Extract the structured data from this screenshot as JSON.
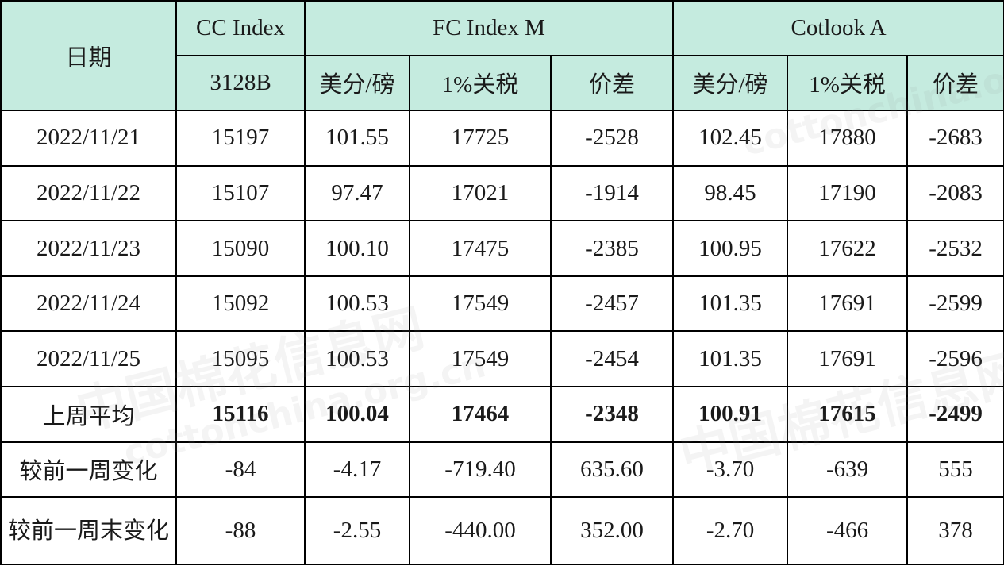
{
  "header": {
    "date": "日期",
    "cc_index": "CC Index",
    "cc_sub": "3128B",
    "fc_index": "FC Index M",
    "cotlook": "Cotlook A",
    "col_cents": "美分/磅",
    "col_tariff": "1%关税",
    "col_spread": "价差"
  },
  "rows": [
    {
      "date": "2022/11/21",
      "cc": "15197",
      "fc_cents": "101.55",
      "fc_tariff": "17725",
      "fc_spread": "-2528",
      "ca_cents": "102.45",
      "ca_tariff": "17880",
      "ca_spread": "-2683"
    },
    {
      "date": "2022/11/22",
      "cc": "15107",
      "fc_cents": "97.47",
      "fc_tariff": "17021",
      "fc_spread": "-1914",
      "ca_cents": "98.45",
      "ca_tariff": "17190",
      "ca_spread": "-2083"
    },
    {
      "date": "2022/11/23",
      "cc": "15090",
      "fc_cents": "100.10",
      "fc_tariff": "17475",
      "fc_spread": "-2385",
      "ca_cents": "100.95",
      "ca_tariff": "17622",
      "ca_spread": "-2532"
    },
    {
      "date": "2022/11/24",
      "cc": "15092",
      "fc_cents": "100.53",
      "fc_tariff": "17549",
      "fc_spread": "-2457",
      "ca_cents": "101.35",
      "ca_tariff": "17691",
      "ca_spread": "-2599"
    },
    {
      "date": "2022/11/25",
      "cc": "15095",
      "fc_cents": "100.53",
      "fc_tariff": "17549",
      "fc_spread": "-2454",
      "ca_cents": "101.35",
      "ca_tariff": "17691",
      "ca_spread": "-2596"
    }
  ],
  "avg": {
    "label": "上周平均",
    "cc": "15116",
    "fc_cents": "100.04",
    "fc_tariff": "17464",
    "fc_spread": "-2348",
    "ca_cents": "100.91",
    "ca_tariff": "17615",
    "ca_spread": "-2499"
  },
  "wow": {
    "label": "较前一周变化",
    "cc": "-84",
    "fc_cents": "-4.17",
    "fc_tariff": "-719.40",
    "fc_spread": "635.60",
    "ca_cents": "-3.70",
    "ca_tariff": "-639",
    "ca_spread": "555"
  },
  "wend": {
    "label": "较前一周末变化",
    "cc": "-88",
    "fc_cents": "-2.55",
    "fc_tariff": "-440.00",
    "fc_spread": "352.00",
    "ca_cents": "-2.70",
    "ca_tariff": "-466",
    "ca_spread": "378"
  },
  "watermark": {
    "text_cn": "中国棉花信息网",
    "text_url": "cottonchina.org.cn"
  },
  "colors": {
    "header_bg": "#c5ebdf",
    "border": "#000000",
    "muted_text": "#666666"
  }
}
